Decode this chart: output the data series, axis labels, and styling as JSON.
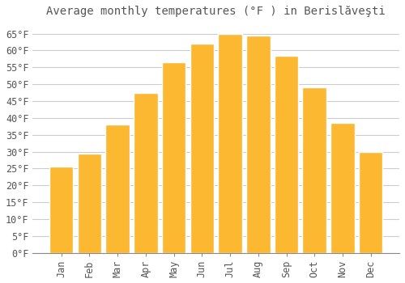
{
  "title": "Average monthly temperatures (°F ) in Berislăveşti",
  "months": [
    "Jan",
    "Feb",
    "Mar",
    "Apr",
    "May",
    "Jun",
    "Jul",
    "Aug",
    "Sep",
    "Oct",
    "Nov",
    "Dec"
  ],
  "values": [
    25.5,
    29.5,
    38.0,
    47.5,
    56.5,
    62.0,
    65.0,
    64.5,
    58.5,
    49.0,
    38.5,
    30.0
  ],
  "bar_color": "#FDB831",
  "bar_edge_color": "#FFFFFF",
  "background_color": "#FFFFFF",
  "grid_color": "#CCCCCC",
  "text_color": "#555555",
  "ylim": [
    0,
    68
  ],
  "yticks": [
    0,
    5,
    10,
    15,
    20,
    25,
    30,
    35,
    40,
    45,
    50,
    55,
    60,
    65
  ],
  "title_fontsize": 10,
  "tick_fontsize": 8.5,
  "bar_width": 0.85
}
